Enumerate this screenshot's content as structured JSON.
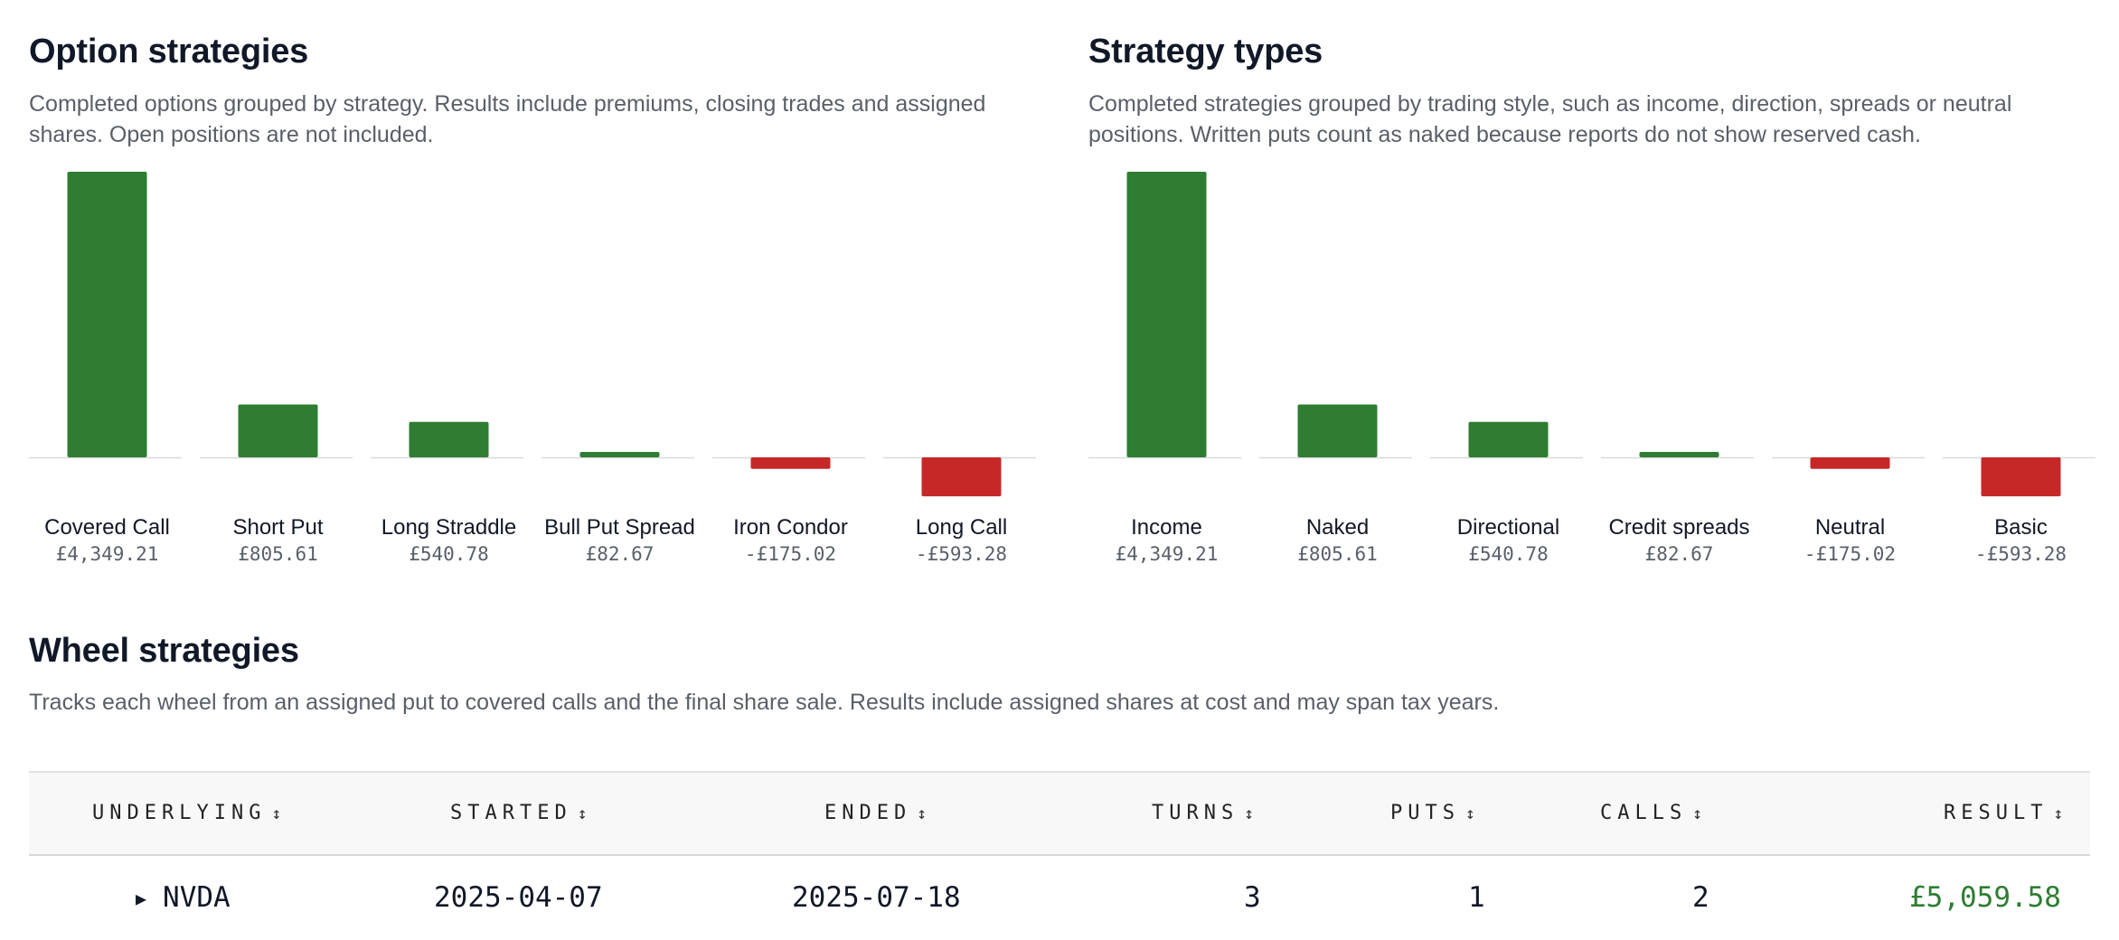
{
  "colors": {
    "positive": "#2e7d32",
    "negative": "#c62828",
    "baseline": "#d9d9d9"
  },
  "option_strategies": {
    "title": "Option strategies",
    "description": "Completed options grouped by strategy. Results include premiums, closing trades and assigned shares. Open positions are not included."
  },
  "strategy_types": {
    "title": "Strategy types",
    "description": "Completed strategies grouped by trading style, such as income, direction, spreads or neutral positions. Written puts count as naked because reports do not show reserved cash."
  },
  "chart_data": [
    {
      "type": "bar",
      "categories": [
        "Covered Call",
        "Short Put",
        "Long Straddle",
        "Bull Put Spread",
        "Iron Condor",
        "Long Call"
      ],
      "values": [
        4349.21,
        805.61,
        540.78,
        82.67,
        -175.02,
        -593.28
      ],
      "value_labels": [
        "£4,349.21",
        "£805.61",
        "£540.78",
        "£82.67",
        "-£175.02",
        "-£593.28"
      ],
      "title": "Option strategies",
      "xlabel": "",
      "ylabel": "",
      "grid": false
    },
    {
      "type": "bar",
      "categories": [
        "Income",
        "Naked",
        "Directional",
        "Credit spreads",
        "Neutral",
        "Basic"
      ],
      "values": [
        4349.21,
        805.61,
        540.78,
        82.67,
        -175.02,
        -593.28
      ],
      "value_labels": [
        "£4,349.21",
        "£805.61",
        "£540.78",
        "£82.67",
        "-£175.02",
        "-£593.28"
      ],
      "title": "Strategy types",
      "xlabel": "",
      "ylabel": "",
      "grid": false
    }
  ],
  "wheel": {
    "title": "Wheel strategies",
    "description": "Tracks each wheel from an assigned put to covered calls and the final share sale. Results include assigned shares at cost and may span tax years.",
    "sort_icon": "↕",
    "expand_icon": "▶",
    "columns": {
      "underlying": "UNDERLYING",
      "started": "STARTED",
      "ended": "ENDED",
      "turns": "TURNS",
      "puts": "PUTS",
      "calls": "CALLS",
      "result": "RESULT"
    },
    "rows": [
      {
        "underlying": "NVDA",
        "started": "2025-04-07",
        "ended": "2025-07-18",
        "turns": "3",
        "puts": "1",
        "calls": "2",
        "result": "£5,059.58"
      }
    ]
  }
}
